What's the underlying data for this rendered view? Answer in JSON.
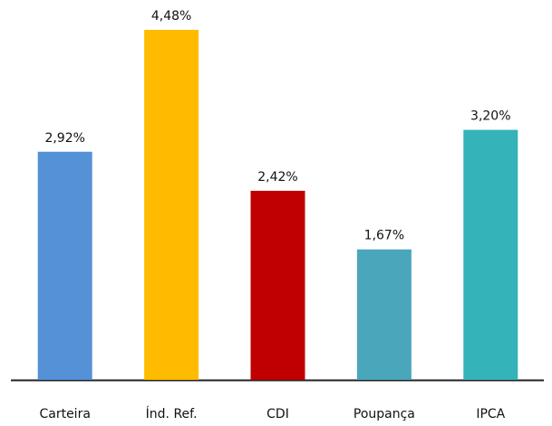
{
  "chart_data": {
    "type": "bar",
    "categories": [
      "Carteira",
      "Índ. Ref.",
      "CDI",
      "Poupança",
      "IPCA"
    ],
    "values": [
      2.92,
      4.48,
      2.42,
      1.67,
      3.2
    ],
    "value_labels": [
      "2,92%",
      "4,48%",
      "2,42%",
      "1,67%",
      "3,20%"
    ],
    "colors": [
      "#5591d6",
      "#ffbb00",
      "#c00000",
      "#4aa6bb",
      "#34b3b8"
    ]
  }
}
